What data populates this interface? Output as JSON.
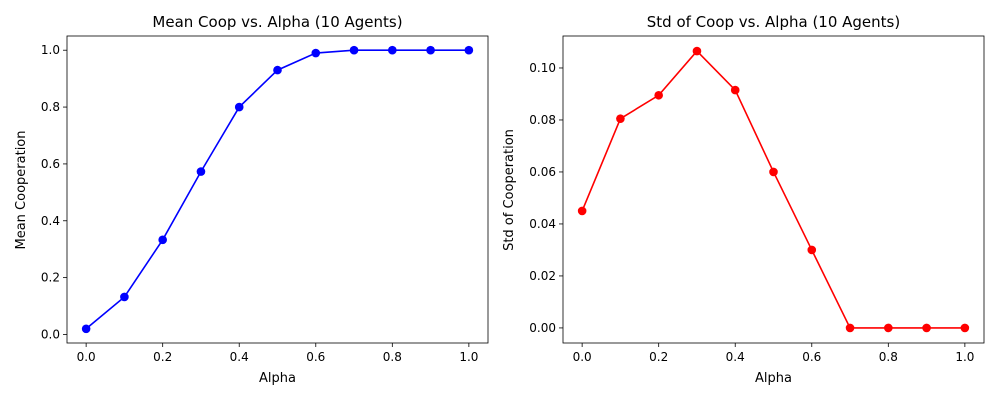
{
  "figure": {
    "background": "#ffffff"
  },
  "chart_data": [
    {
      "type": "line",
      "title": "Mean Coop vs. Alpha (10 Agents)",
      "xlabel": "Alpha",
      "ylabel": "Mean Cooperation",
      "x": [
        0.0,
        0.1,
        0.2,
        0.3,
        0.4,
        0.5,
        0.6,
        0.7,
        0.8,
        0.9,
        1.0
      ],
      "series": [
        {
          "color": "#0000ff",
          "marker": "circle",
          "values": [
            0.02,
            0.132,
            0.333,
            0.573,
            0.8,
            0.93,
            0.99,
            1.0,
            1.0,
            1.0,
            1.0
          ]
        }
      ],
      "xlim": [
        -0.05,
        1.05
      ],
      "ylim": [
        -0.03,
        1.05
      ],
      "xticks": [
        "0.0",
        "0.2",
        "0.4",
        "0.6",
        "0.8",
        "1.0"
      ],
      "yticks": [
        "0.0",
        "0.2",
        "0.4",
        "0.6",
        "0.8",
        "1.0"
      ],
      "grid": false
    },
    {
      "type": "line",
      "title": "Std of Coop vs. Alpha (10 Agents)",
      "xlabel": "Alpha",
      "ylabel": "Std of Cooperation",
      "x": [
        0.0,
        0.1,
        0.2,
        0.3,
        0.4,
        0.5,
        0.6,
        0.7,
        0.8,
        0.9,
        1.0
      ],
      "series": [
        {
          "color": "#ff0000",
          "marker": "circle",
          "values": [
            0.045,
            0.0805,
            0.0895,
            0.1065,
            0.0915,
            0.06,
            0.03,
            0.0,
            0.0,
            0.0,
            0.0
          ]
        }
      ],
      "xlim": [
        -0.05,
        1.05
      ],
      "ylim": [
        -0.0058,
        0.1123
      ],
      "xticks": [
        "0.0",
        "0.2",
        "0.4",
        "0.6",
        "0.8",
        "1.0"
      ],
      "yticks": [
        "0.00",
        "0.02",
        "0.04",
        "0.06",
        "0.08",
        "0.10"
      ],
      "grid": false
    }
  ]
}
